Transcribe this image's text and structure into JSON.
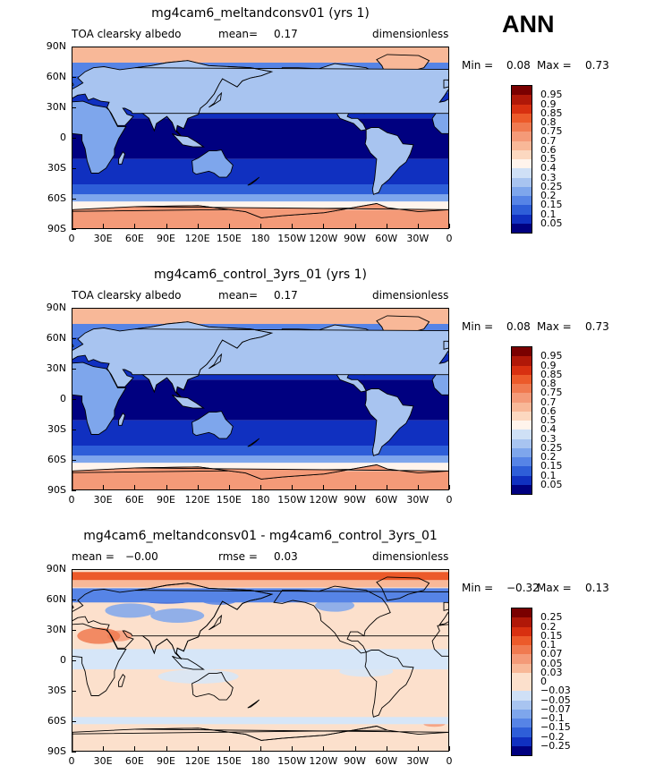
{
  "season": "ANN",
  "lat_labels": [
    "90N",
    "60N",
    "30N",
    "0",
    "30S",
    "60S",
    "90S"
  ],
  "lon_labels": [
    "0",
    "30E",
    "60E",
    "90E",
    "120E",
    "150E",
    "180",
    "150W",
    "120W",
    "90W",
    "60W",
    "30W",
    "0"
  ],
  "panels": [
    {
      "title": "mg4cam6_meltandconsv01 (yrs 1)",
      "left_label": "TOA clearsky albedo",
      "mid_label": "mean=",
      "mid_value": "0.17",
      "right_label": "dimensionless",
      "min_label": "Min =",
      "min_value": "0.08",
      "max_label": "Max =",
      "max_value": "0.73",
      "levels": [
        "0.95",
        "0.9",
        "0.85",
        "0.8",
        "0.75",
        "0.7",
        "0.6",
        "0.5",
        "0.4",
        "0.3",
        "0.25",
        "0.2",
        "0.15",
        "0.1",
        "0.05"
      ],
      "colors": [
        "#7a0000",
        "#b01808",
        "#d83010",
        "#ec5a2a",
        "#f07a50",
        "#f49a78",
        "#f8b898",
        "#fcd8c0",
        "#fff4ec",
        "#cfe0f6",
        "#a8c4f0",
        "#7ea6ec",
        "#5684e6",
        "#2e5ed8",
        "#1030c0",
        "#000080"
      ]
    },
    {
      "title": "mg4cam6_control_3yrs_01 (yrs 1)",
      "left_label": "TOA clearsky albedo",
      "mid_label": "mean=",
      "mid_value": "0.17",
      "right_label": "dimensionless",
      "min_label": "Min =",
      "min_value": "0.08",
      "max_label": "Max =",
      "max_value": "0.73",
      "levels": [
        "0.95",
        "0.9",
        "0.85",
        "0.8",
        "0.75",
        "0.7",
        "0.6",
        "0.5",
        "0.4",
        "0.3",
        "0.25",
        "0.2",
        "0.15",
        "0.1",
        "0.05"
      ],
      "colors": [
        "#7a0000",
        "#b01808",
        "#d83010",
        "#ec5a2a",
        "#f07a50",
        "#f49a78",
        "#f8b898",
        "#fcd8c0",
        "#fff4ec",
        "#cfe0f6",
        "#a8c4f0",
        "#7ea6ec",
        "#5684e6",
        "#2e5ed8",
        "#1030c0",
        "#000080"
      ]
    },
    {
      "title": "mg4cam6_meltandconsv01 - mg4cam6_control_3yrs_01",
      "left_label": "mean =",
      "left_value": "−0.00",
      "mid_label": "rmse =",
      "mid_value": "0.03",
      "right_label": "dimensionless",
      "min_label": "Min =",
      "min_value": "−0.32",
      "max_label": "Max =",
      "max_value": "0.13",
      "levels": [
        "0.25",
        "0.2",
        "0.15",
        "0.1",
        "0.07",
        "0.05",
        "0.03",
        "0",
        "−0.03",
        "−0.05",
        "−0.07",
        "−0.1",
        "−0.15",
        "−0.2",
        "−0.25"
      ],
      "colors": [
        "#7a0000",
        "#b01808",
        "#d83010",
        "#ec5a2a",
        "#f07a50",
        "#f49a78",
        "#f8b898",
        "#fce0cc",
        "#fce0cc",
        "#cfe0f6",
        "#a8c4f0",
        "#7ea6ec",
        "#5684e6",
        "#2e5ed8",
        "#1030c0",
        "#000080"
      ]
    }
  ]
}
